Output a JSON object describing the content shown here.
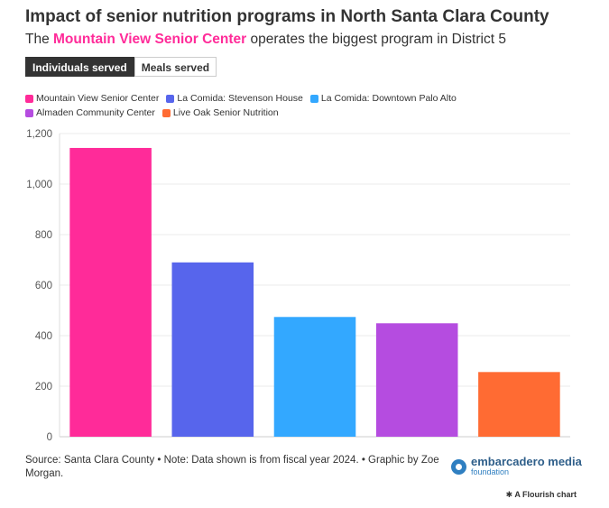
{
  "header": {
    "title": "Impact of senior nutrition programs in North Santa Clara County",
    "subtitle_prefix": "The ",
    "subtitle_highlight": "Mountain View Senior Center",
    "subtitle_suffix": " operates the biggest program in District 5"
  },
  "tabs": [
    {
      "label": "Individuals served",
      "active": true
    },
    {
      "label": "Meals served",
      "active": false
    }
  ],
  "chart_data": {
    "type": "bar",
    "categories": [
      "Mountain View Senior Center",
      "La Comida: Stevenson House",
      "La Comida: Downtown Palo Alto",
      "Almaden Community Center",
      "Live Oak Senior Nutrition"
    ],
    "values": [
      1143,
      690,
      474,
      449,
      256
    ],
    "colors": [
      "#ff2b99",
      "#5765ec",
      "#33a8ff",
      "#b54ce0",
      "#ff6b33"
    ],
    "ylim": [
      0,
      1200
    ],
    "yticks": [
      0,
      200,
      400,
      600,
      800,
      1000,
      1200
    ],
    "ytick_labels": [
      "0",
      "200",
      "400",
      "600",
      "800",
      "1,000",
      "1,200"
    ],
    "grid": true,
    "legend_position": "top-left"
  },
  "footer": {
    "source": "Source: Santa Clara County • Note: Data shown is from fiscal year 2024. • Graphic by Zoe Morgan.",
    "brand_name": "embarcadero media",
    "brand_sub": "foundation",
    "brand_icon": "embarcadero-logo-icon",
    "credit": "A Flourish chart",
    "credit_icon": "flourish-asterisk-icon"
  }
}
